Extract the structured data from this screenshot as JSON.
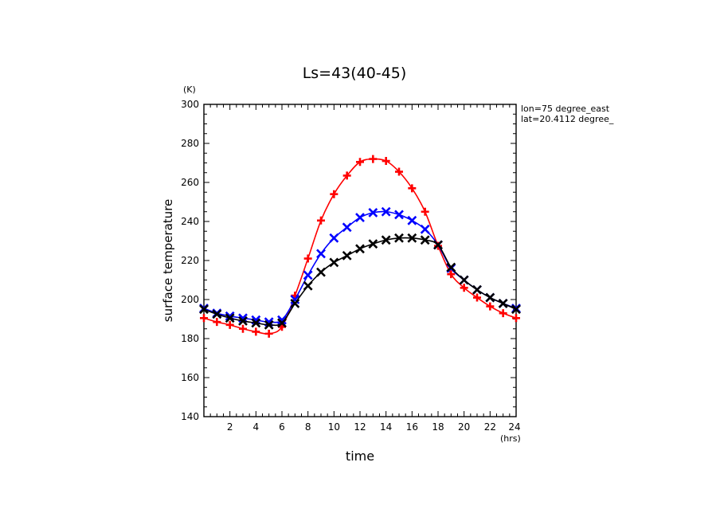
{
  "chart_data": {
    "type": "line",
    "title": "Ls=43(40-45)",
    "xlabel": "time",
    "ylabel": "surface temperature",
    "x_unit": "(hrs)",
    "y_unit": "(K)",
    "xlim": [
      0,
      24
    ],
    "ylim": [
      140,
      300
    ],
    "xticks": [
      2,
      4,
      6,
      8,
      10,
      12,
      14,
      16,
      18,
      20,
      22,
      24
    ],
    "yticks": [
      140,
      160,
      180,
      200,
      220,
      240,
      260,
      280,
      300
    ],
    "grid": false,
    "annotations": [
      "lon=75 degree_east",
      "lat=20.4112 degree_"
    ],
    "x": [
      0,
      1,
      2,
      3,
      4,
      5,
      6,
      7,
      8,
      9,
      10,
      11,
      12,
      13,
      14,
      15,
      16,
      17,
      18,
      19,
      20,
      21,
      22,
      23,
      24
    ],
    "series": [
      {
        "color": "#ff0000",
        "marker": "plus",
        "values": [
          190.5,
          188.5,
          187,
          185,
          183.5,
          182.5,
          186,
          202,
          221,
          240.5,
          254,
          263.5,
          270.5,
          272,
          271,
          265.5,
          257,
          245,
          227.5,
          213,
          206,
          201,
          196.5,
          193,
          190.5
        ]
      },
      {
        "color": "#0000ff",
        "marker": "x",
        "values": [
          195.5,
          193,
          191.5,
          190.5,
          189.5,
          188.5,
          189.5,
          200,
          212.5,
          223.5,
          231.5,
          237,
          242,
          244.5,
          245,
          243.5,
          240.5,
          236,
          228,
          216,
          210,
          205,
          201,
          198,
          195.5
        ]
      },
      {
        "color": "#000000",
        "marker": "x",
        "values": [
          195,
          192.5,
          190.5,
          189,
          188,
          187,
          188,
          198,
          207,
          214,
          219,
          222.5,
          226,
          228.5,
          230.5,
          231.5,
          231.5,
          230.5,
          228,
          216.5,
          210,
          205,
          201,
          198,
          195
        ]
      }
    ]
  }
}
